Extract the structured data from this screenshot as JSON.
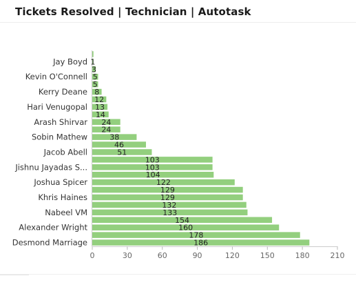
{
  "window": {
    "title": "Tickets Resolved | Technician | Autotask"
  },
  "chart_data": {
    "type": "bar",
    "orientation": "horizontal",
    "title": "Tickets Resolved | Technician | Autotask",
    "xlabel": "",
    "ylabel": "",
    "xlim": [
      0,
      210
    ],
    "x_ticks": [
      0,
      30,
      60,
      90,
      120,
      150,
      180,
      210
    ],
    "bar_color": "#93cf7e",
    "categories": [
      "",
      "Jay Boyd",
      "",
      "Kevin O'Connell",
      "",
      "Kerry Deane",
      "",
      "Hari Venugopal",
      "",
      "Arash Shirvar",
      "",
      "Sobin Mathew",
      "",
      "Jacob  Abell",
      "",
      "Jishnu Jayadas S...",
      "",
      "Joshua Spicer",
      "",
      "Khris Haines",
      "",
      "Nabeel VM",
      "",
      "Alexander Wright",
      "",
      "Desmond Marriage"
    ],
    "values": [
      1,
      1,
      3,
      5,
      5,
      8,
      12,
      13,
      14,
      24,
      24,
      38,
      46,
      51,
      103,
      103,
      104,
      122,
      129,
      129,
      132,
      133,
      154,
      160,
      178,
      186
    ],
    "value_labels": [
      "",
      "1",
      "3",
      "5",
      "5",
      "8",
      "12",
      "13",
      "14",
      "24",
      "24",
      "38",
      "46",
      "51",
      "103",
      "103",
      "104",
      "122",
      "129",
      "129",
      "132",
      "133",
      "154",
      "160",
      "178",
      "186"
    ]
  }
}
